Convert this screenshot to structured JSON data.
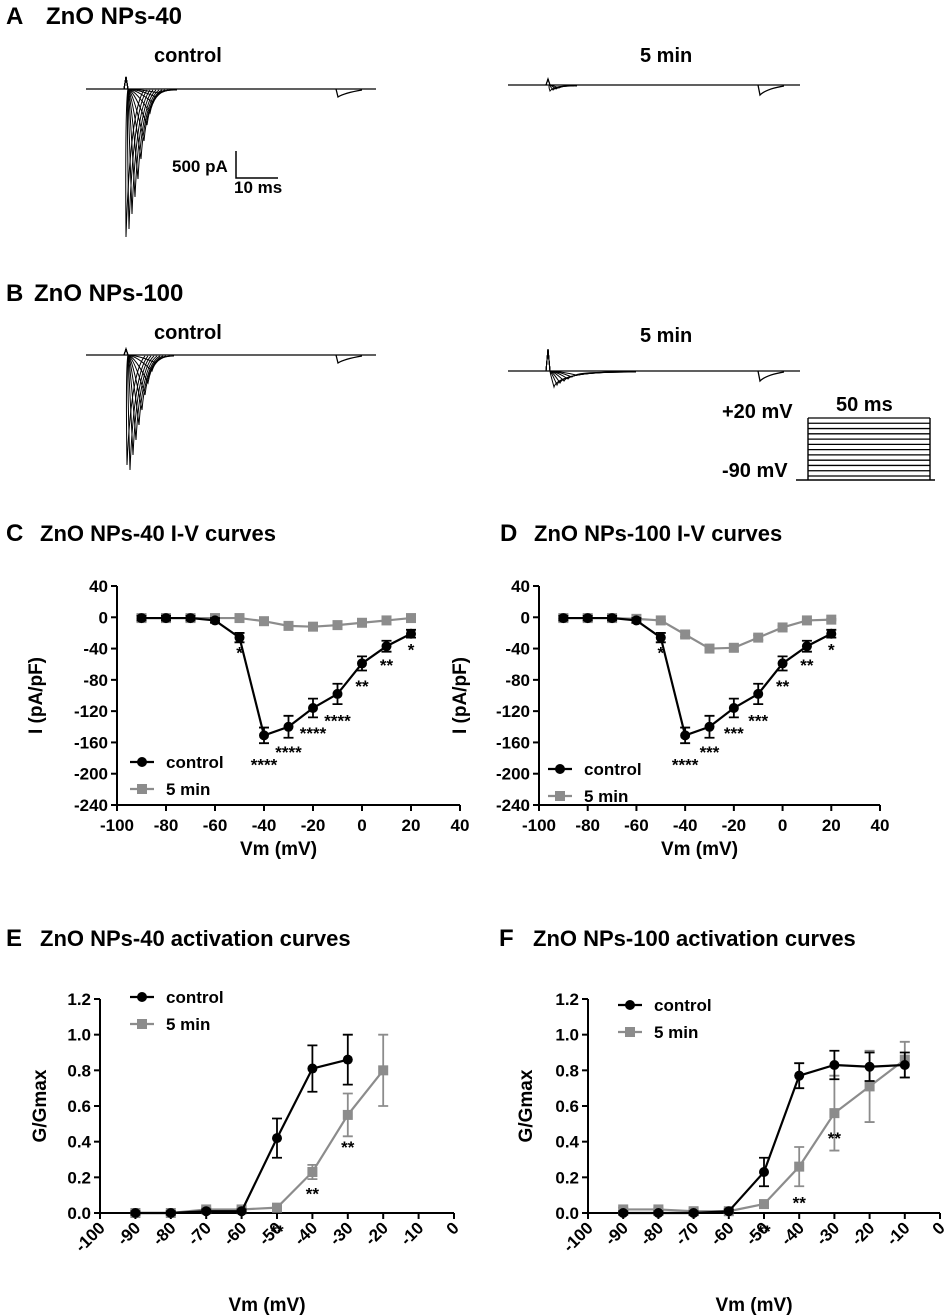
{
  "panels": {
    "A": {
      "letter": "A",
      "title": "ZnO NPs-40",
      "control_label": "control",
      "treated_label": "5 min",
      "scalebar_y": "500 pA",
      "scalebar_x": "10 ms"
    },
    "B": {
      "letter": "B",
      "title": "ZnO NPs-100",
      "control_label": "control",
      "treated_label": "5 min",
      "protocol_top": "+20 mV",
      "protocol_bottom": "-90 mV",
      "protocol_duration": "50 ms"
    }
  },
  "chart_data": [
    {
      "id": "C",
      "type": "line",
      "letter": "C",
      "title": "ZnO NPs-40 I-V curves",
      "xlabel": "Vm (mV)",
      "ylabel": "I (pA/pF)",
      "xlim": [
        -100,
        40
      ],
      "ylim": [
        -240,
        40
      ],
      "xticks": [
        -100,
        -80,
        -60,
        -40,
        -20,
        0,
        20,
        40
      ],
      "yticks": [
        40,
        0,
        -40,
        -80,
        -120,
        -160,
        -200,
        -240
      ],
      "legend": "lower-left",
      "x": [
        -90,
        -80,
        -70,
        -60,
        -50,
        -40,
        -30,
        -20,
        -10,
        0,
        10,
        20
      ],
      "series": [
        {
          "name": "control",
          "marker": "circle",
          "color": "#000000",
          "values": [
            -1,
            -1,
            -1,
            -4,
            -26,
            -151,
            -140,
            -116,
            -98,
            -59,
            -37,
            -21
          ],
          "errors": [
            3,
            3,
            3,
            3,
            6,
            10,
            14,
            12,
            13,
            9,
            7,
            5
          ]
        },
        {
          "name": "5 min",
          "marker": "square",
          "color": "#8c8c8c",
          "values": [
            -1,
            -1,
            -1,
            -1,
            -1,
            -5,
            -11,
            -12,
            -10,
            -7,
            -4,
            -1
          ],
          "errors": [
            1,
            1,
            1,
            1,
            1,
            2,
            3,
            3,
            2,
            2,
            1,
            1
          ]
        }
      ],
      "annotations": [
        {
          "x": -50,
          "y": -45,
          "text": "*"
        },
        {
          "x": -40,
          "y": -188,
          "text": "****"
        },
        {
          "x": -30,
          "y": -172,
          "text": "****"
        },
        {
          "x": -20,
          "y": -148,
          "text": "****"
        },
        {
          "x": -10,
          "y": -132,
          "text": "****"
        },
        {
          "x": 0,
          "y": -88,
          "text": "**"
        },
        {
          "x": 10,
          "y": -61,
          "text": "**"
        },
        {
          "x": 20,
          "y": -41,
          "text": "*"
        }
      ]
    },
    {
      "id": "D",
      "type": "line",
      "letter": "D",
      "title": "ZnO NPs-100 I-V curves",
      "xlabel": "Vm (mV)",
      "ylabel": "I (pA/pF)",
      "xlim": [
        -100,
        40
      ],
      "ylim": [
        -240,
        40
      ],
      "xticks": [
        -100,
        -80,
        -60,
        -40,
        -20,
        0,
        20,
        40
      ],
      "yticks": [
        40,
        0,
        -40,
        -80,
        -120,
        -160,
        -200,
        -240
      ],
      "legend": "lower-left",
      "x": [
        -90,
        -80,
        -70,
        -60,
        -50,
        -40,
        -30,
        -20,
        -10,
        0,
        10,
        20
      ],
      "series": [
        {
          "name": "control",
          "marker": "circle",
          "color": "#000000",
          "values": [
            -1,
            -1,
            -1,
            -4,
            -26,
            -151,
            -140,
            -116,
            -98,
            -59,
            -37,
            -21
          ],
          "errors": [
            3,
            3,
            3,
            3,
            6,
            10,
            14,
            12,
            13,
            9,
            7,
            5
          ]
        },
        {
          "name": "5 min",
          "marker": "square",
          "color": "#8c8c8c",
          "values": [
            -1,
            -1,
            -1,
            -2,
            -4,
            -22,
            -40,
            -39,
            -26,
            -13,
            -4,
            -3
          ],
          "errors": [
            1,
            1,
            1,
            1,
            1,
            3,
            4,
            4,
            3,
            2,
            1,
            1
          ]
        }
      ],
      "annotations": [
        {
          "x": -50,
          "y": -45,
          "text": "*"
        },
        {
          "x": -40,
          "y": -188,
          "text": "****"
        },
        {
          "x": -30,
          "y": -172,
          "text": "***"
        },
        {
          "x": -20,
          "y": -148,
          "text": "***"
        },
        {
          "x": -10,
          "y": -132,
          "text": "***"
        },
        {
          "x": 0,
          "y": -88,
          "text": "**"
        },
        {
          "x": 10,
          "y": -61,
          "text": "**"
        },
        {
          "x": 20,
          "y": -41,
          "text": "*"
        }
      ]
    },
    {
      "id": "E",
      "type": "line",
      "letter": "E",
      "title": "ZnO NPs-40 activation curves",
      "xlabel": "Vm (mV)",
      "ylabel": "G/Gmax",
      "xlim": [
        -100,
        0
      ],
      "ylim": [
        0,
        1.2
      ],
      "xticks": [
        -100,
        -90,
        -80,
        -70,
        -60,
        -50,
        -40,
        -30,
        -20,
        -10,
        0
      ],
      "yticks": [
        0.0,
        0.2,
        0.4,
        0.6,
        0.8,
        1.0,
        1.2
      ],
      "legend": "top-left",
      "series": [
        {
          "name": "control",
          "marker": "circle",
          "color": "#000000",
          "x": [
            -90,
            -80,
            -70,
            -60,
            -50,
            -40,
            -30
          ],
          "values": [
            0.0,
            0.0,
            0.01,
            0.01,
            0.42,
            0.81,
            0.86
          ],
          "errors": [
            0.01,
            0.01,
            0.01,
            0.01,
            0.11,
            0.13,
            0.14
          ]
        },
        {
          "name": "5 min",
          "marker": "square",
          "color": "#8c8c8c",
          "x": [
            -90,
            -80,
            -70,
            -60,
            -50,
            -40,
            -30,
            -20
          ],
          "values": [
            0.0,
            0.0,
            0.02,
            0.02,
            0.03,
            0.23,
            0.55,
            0.8
          ],
          "errors": [
            0.01,
            0.01,
            0.01,
            0.01,
            0.01,
            0.04,
            0.12,
            0.2
          ]
        }
      ],
      "annotations": [
        {
          "x": -50,
          "y": -0.1,
          "text": "**"
        },
        {
          "x": -40,
          "y": 0.11,
          "text": "**"
        },
        {
          "x": -30,
          "y": 0.37,
          "text": "**"
        }
      ]
    },
    {
      "id": "F",
      "type": "line",
      "letter": "F",
      "title": "ZnO NPs-100 activation curves",
      "xlabel": "Vm (mV)",
      "ylabel": "G/Gmax",
      "xlim": [
        -100,
        0
      ],
      "ylim": [
        0,
        1.2
      ],
      "xticks": [
        -100,
        -90,
        -80,
        -70,
        -60,
        -50,
        -40,
        -30,
        -20,
        -10,
        0
      ],
      "yticks": [
        0.0,
        0.2,
        0.4,
        0.6,
        0.8,
        1.0,
        1.2
      ],
      "legend": "top-left",
      "series": [
        {
          "name": "control",
          "marker": "circle",
          "color": "#000000",
          "x": [
            -90,
            -80,
            -70,
            -60,
            -50,
            -40,
            -30,
            -20,
            -10
          ],
          "values": [
            0.0,
            0.0,
            0.0,
            0.01,
            0.23,
            0.77,
            0.83,
            0.82,
            0.83
          ],
          "errors": [
            0.01,
            0.01,
            0.01,
            0.01,
            0.08,
            0.07,
            0.08,
            0.08,
            0.07
          ]
        },
        {
          "name": "5 min",
          "marker": "square",
          "color": "#8c8c8c",
          "x": [
            -90,
            -80,
            -70,
            -60,
            -50,
            -40,
            -30,
            -20,
            -10
          ],
          "values": [
            0.02,
            0.02,
            0.01,
            0.01,
            0.05,
            0.26,
            0.56,
            0.71,
            0.86
          ],
          "errors": [
            0.01,
            0.01,
            0.01,
            0.01,
            0.01,
            0.11,
            0.21,
            0.2,
            0.1
          ]
        }
      ],
      "annotations": [
        {
          "x": -50,
          "y": -0.1,
          "text": "**"
        },
        {
          "x": -40,
          "y": 0.06,
          "text": "**"
        },
        {
          "x": -30,
          "y": 0.42,
          "text": "**"
        }
      ]
    }
  ]
}
